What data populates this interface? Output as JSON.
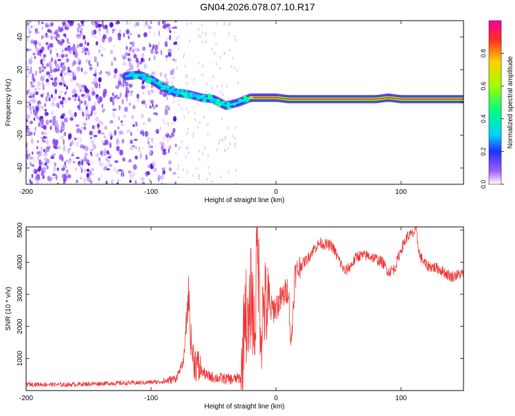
{
  "chart_data": [
    {
      "type": "heatmap",
      "title": "GN04.2026.078.07.10.R17",
      "xlabel": "Height of straight line (km)",
      "ylabel": "Frequency (Hz)",
      "xlim": [
        -200,
        150
      ],
      "ylim": [
        -50,
        50
      ],
      "xticks": [
        -200,
        -100,
        0,
        100
      ],
      "yticks": [
        -40,
        -20,
        0,
        20,
        40
      ],
      "colorbar": {
        "label": "Normalized spectral amplitude",
        "range": [
          0,
          1
        ],
        "ticks": [
          0.0,
          0.2,
          0.4,
          0.6,
          0.8
        ]
      },
      "ridge": {
        "x": [
          -120,
          -110,
          -100,
          -90,
          -80,
          -70,
          -60,
          -50,
          -40,
          -30,
          -20,
          -10,
          0,
          10,
          20,
          40,
          60,
          80,
          90,
          100,
          150
        ],
        "y": [
          16,
          17,
          14,
          9,
          6,
          5,
          3,
          2,
          -2,
          0,
          3,
          3,
          3,
          2,
          2,
          2,
          2,
          2,
          3,
          2,
          2
        ]
      },
      "noise_region_km": [
        -200,
        -90
      ]
    },
    {
      "type": "line",
      "xlabel": "Height of straight line (km)",
      "ylabel": "SNR (10 * v/v)",
      "xlim": [
        -200,
        150
      ],
      "ylim": [
        0,
        5100
      ],
      "xticks": [
        -200,
        -100,
        0,
        100
      ],
      "yticks": [
        1000,
        2000,
        3000,
        4000,
        5000
      ],
      "series": [
        {
          "name": "SNR",
          "color": "#ee3333",
          "x": [
            -200,
            -170,
            -140,
            -110,
            -90,
            -80,
            -74,
            -70,
            -68,
            -66,
            -62,
            -55,
            -45,
            -35,
            -27,
            -25,
            -22,
            -20,
            -17,
            -15,
            -12,
            -10,
            -5,
            0,
            5,
            10,
            12,
            15,
            20,
            25,
            30,
            35,
            45,
            55,
            60,
            65,
            75,
            85,
            90,
            95,
            100,
            105,
            110,
            112,
            115,
            120,
            130,
            140,
            150
          ],
          "y": [
            200,
            180,
            220,
            240,
            280,
            380,
            900,
            3050,
            1500,
            1000,
            700,
            450,
            380,
            350,
            400,
            2900,
            1500,
            3200,
            1700,
            4800,
            1800,
            2700,
            2500,
            2600,
            2900,
            3200,
            1300,
            3600,
            3900,
            4100,
            4400,
            4600,
            4500,
            3700,
            3900,
            4200,
            4200,
            4000,
            3700,
            3800,
            4400,
            4800,
            4900,
            5000,
            4200,
            3900,
            3800,
            3550,
            3650
          ]
        }
      ]
    }
  ]
}
